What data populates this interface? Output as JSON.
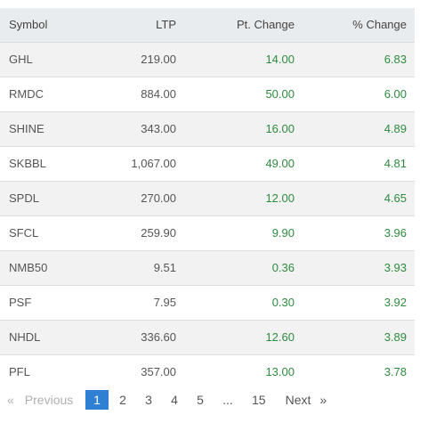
{
  "table": {
    "headers": {
      "symbol": "Symbol",
      "ltp": "LTP",
      "pt_change": "Pt. Change",
      "pct_change": "% Change"
    },
    "rows": [
      {
        "symbol": "GHL",
        "ltp": "219.00",
        "pt_change": "14.00",
        "pct_change": "6.83"
      },
      {
        "symbol": "RMDC",
        "ltp": "884.00",
        "pt_change": "50.00",
        "pct_change": "6.00"
      },
      {
        "symbol": "SHINE",
        "ltp": "343.00",
        "pt_change": "16.00",
        "pct_change": "4.89"
      },
      {
        "symbol": "SKBBL",
        "ltp": "1,067.00",
        "pt_change": "49.00",
        "pct_change": "4.81"
      },
      {
        "symbol": "SPDL",
        "ltp": "270.00",
        "pt_change": "12.00",
        "pct_change": "4.65"
      },
      {
        "symbol": "SFCL",
        "ltp": "259.90",
        "pt_change": "9.90",
        "pct_change": "3.96"
      },
      {
        "symbol": "NMB50",
        "ltp": "9.51",
        "pt_change": "0.36",
        "pct_change": "3.93"
      },
      {
        "symbol": "PSF",
        "ltp": "7.95",
        "pt_change": "0.30",
        "pct_change": "3.92"
      },
      {
        "symbol": "NHDL",
        "ltp": "336.60",
        "pt_change": "12.60",
        "pct_change": "3.89"
      },
      {
        "symbol": "PFL",
        "ltp": "357.00",
        "pt_change": "13.00",
        "pct_change": "3.78"
      }
    ]
  },
  "pagination": {
    "prev_arrow": "«",
    "prev_label": "Previous",
    "pages": [
      "1",
      "2",
      "3",
      "4",
      "5"
    ],
    "active_page": "1",
    "ellipsis": "...",
    "last_page": "15",
    "next_label": "Next",
    "next_arrow": "»"
  },
  "colors": {
    "positive": "#2e8b3e",
    "header_bg": "#e9ecef",
    "active_page_bg": "#2f7fd3"
  }
}
